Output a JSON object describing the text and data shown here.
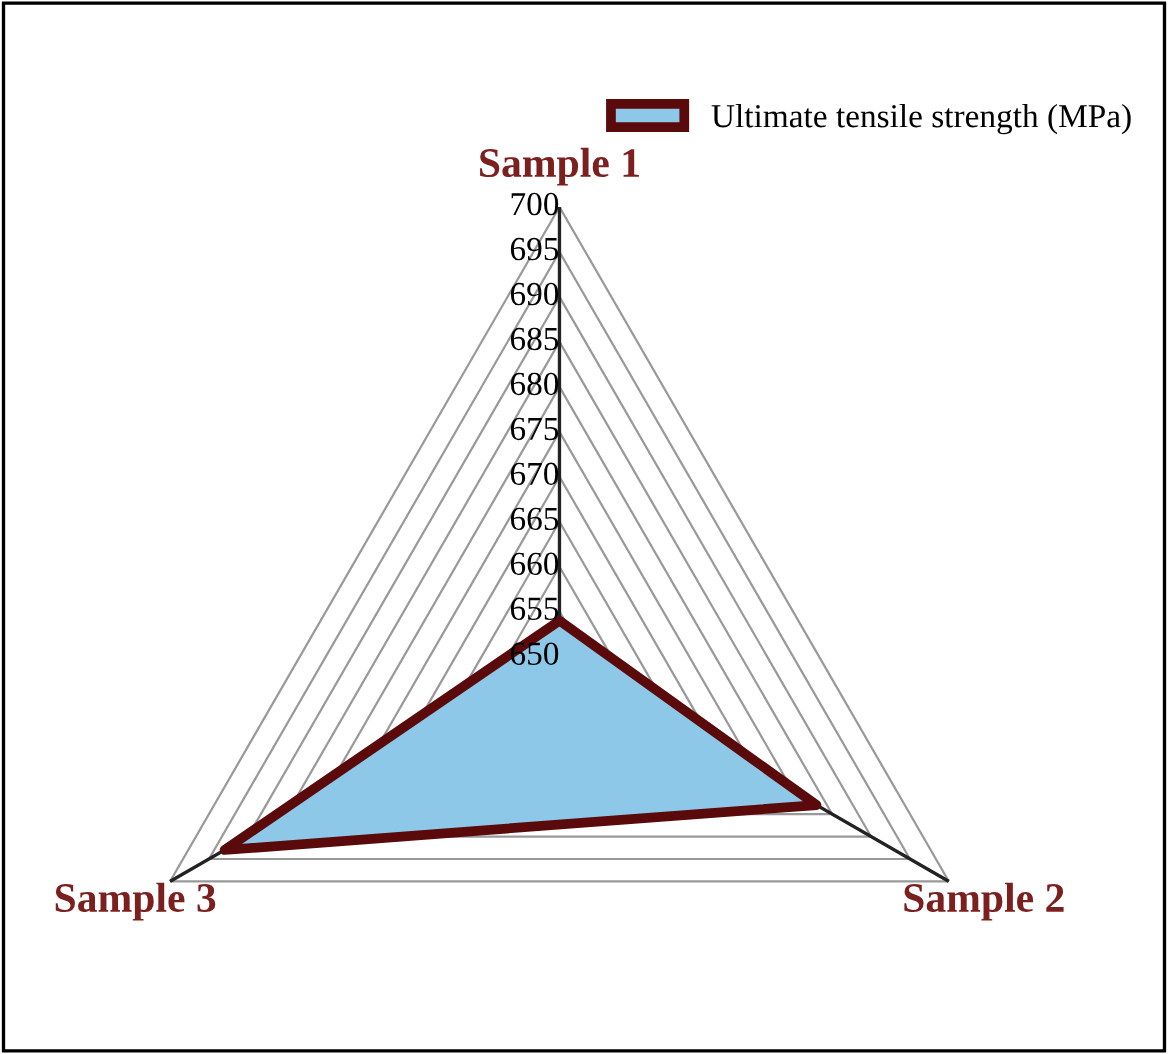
{
  "chart_data": {
    "type": "radar",
    "categories": [
      "Sample 1",
      "Sample 2",
      "Sample 3"
    ],
    "series": [
      {
        "name": "Ultimate tensile strength (MPa)",
        "color": "#8ec8e8",
        "values": [
          654,
          683,
          693
        ]
      }
    ],
    "ylim": [
      650,
      700
    ],
    "yticks": [
      650,
      655,
      660,
      665,
      670,
      675,
      680,
      685,
      690,
      695,
      700
    ],
    "grid": true,
    "legend": "top right"
  }
}
